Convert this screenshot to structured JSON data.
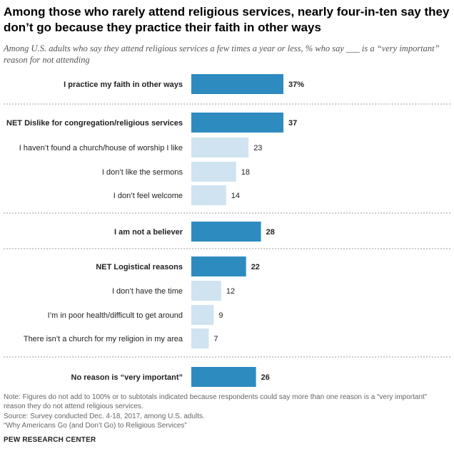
{
  "title": "Among those who rarely attend religious services, nearly four-in-ten say they don’t go because they practice their faith in other ways",
  "subtitle": "Among U.S. adults who say they attend religious services a few times a year or less, % who say ___ is a “very important” reason for not attending",
  "chart_data": {
    "type": "bar",
    "orientation": "horizontal",
    "categories": [
      "I practice my faith in other ways",
      "NET Dislike for congregation/religious services",
      "I haven’t found a church/house of worship I like",
      "I don’t like the sermons",
      "I don’t feel welcome",
      "I am not a believer",
      "NET Logistical reasons",
      "I don’t have the time",
      "I’m in poor health/difficult to get around",
      "There isn’t a church for my religion in my area",
      "No reason is “very important”"
    ],
    "values": [
      37,
      37,
      23,
      18,
      14,
      28,
      22,
      12,
      9,
      7,
      26
    ],
    "value_labels": [
      "37%",
      "37",
      "23",
      "18",
      "14",
      "28",
      "22",
      "12",
      "9",
      "7",
      "26"
    ],
    "emphasis": [
      true,
      true,
      false,
      false,
      false,
      true,
      true,
      false,
      false,
      false,
      true
    ],
    "groups_end_after_index": [
      0,
      4,
      5,
      9
    ],
    "xlim": [
      0,
      37
    ],
    "grid": false,
    "colors": {
      "primary": "#2e8bc0",
      "secondary": "#cfe3f1",
      "divider": "#999999"
    }
  },
  "footer": {
    "note": "Note: Figures do not add to 100% or to subtotals indicated because respondents could say more than one reason is a “very important” reason they do not attend religious services.",
    "source": "Source: Survey conducted Dec. 4-18, 2017, among U.S. adults.",
    "report": "“Why Americans Go (and Don’t Go) to Religious Services”",
    "brand": "PEW RESEARCH CENTER"
  }
}
